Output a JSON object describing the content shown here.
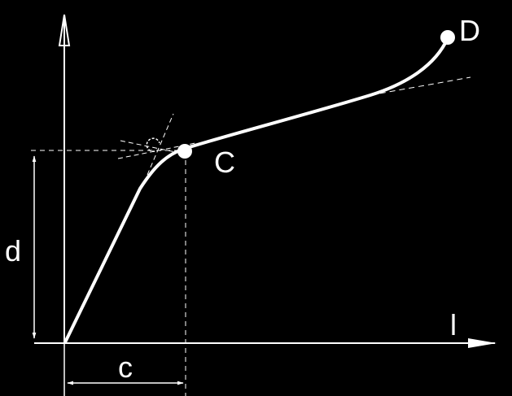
{
  "labels": {
    "point_c": "C",
    "point_d": "D",
    "dimension_c": "c",
    "dimension_d": "d",
    "axis_x": "l"
  },
  "colors": {
    "background": "#000000",
    "ink": "#ffffff"
  }
}
